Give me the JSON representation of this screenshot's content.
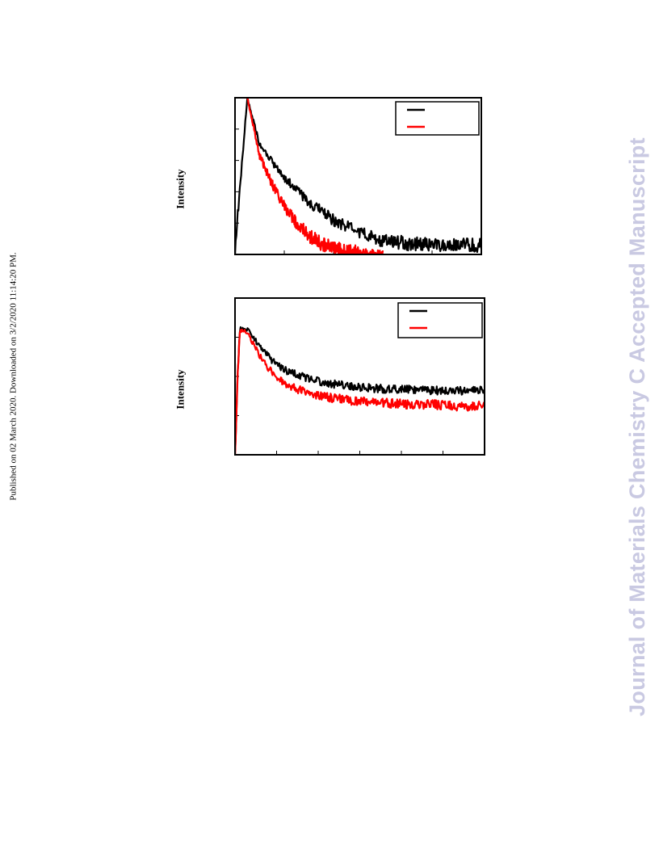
{
  "side_note": "Published on 02 March 2020. Downloaded on 3/2/2020 11:14:20 PM.",
  "watermark": "Journal of Materials Chemistry C Accepted Manuscript",
  "colors": {
    "series_1": "#000000",
    "series_2": "#ff0000",
    "watermark": "#c9c9e2"
  },
  "chart_data": [
    {
      "type": "line",
      "title": "",
      "xlabel": "",
      "ylabel": "Intensity",
      "x_ticks": 5,
      "y_ticks": 5,
      "xlim": [
        0,
        100
      ],
      "ylim": [
        0,
        100
      ],
      "grid": false,
      "legend_position": "top-right",
      "series": [
        {
          "color": "#000000",
          "x": [
            0,
            5,
            10,
            15,
            20,
            25,
            30,
            40,
            50,
            60,
            70,
            80,
            90,
            100
          ],
          "y": [
            4,
            100,
            70,
            59,
            49,
            41,
            33,
            22,
            14,
            9,
            7,
            6,
            6,
            6
          ]
        },
        {
          "color": "#ff0000",
          "x": [
            5,
            10,
            15,
            20,
            25,
            30,
            35,
            40,
            45,
            50,
            60
          ],
          "y": [
            100,
            63,
            45,
            31,
            20,
            12,
            7,
            4,
            2,
            1,
            0
          ]
        }
      ]
    },
    {
      "type": "line",
      "title": "",
      "xlabel": "",
      "ylabel": "Intensity",
      "x_ticks": 6,
      "y_ticks": 4,
      "xlim": [
        0,
        100
      ],
      "ylim": [
        0,
        100
      ],
      "grid": false,
      "legend_position": "top-right",
      "series": [
        {
          "color": "#000000",
          "x": [
            0,
            1,
            2,
            5,
            10,
            15,
            20,
            30,
            40,
            50,
            60,
            70,
            80,
            90,
            100
          ],
          "y": [
            0,
            50,
            80,
            80,
            69,
            60,
            54,
            48,
            45,
            43,
            42,
            42,
            41,
            41,
            41
          ]
        },
        {
          "color": "#ff0000",
          "x": [
            0,
            1,
            2,
            5,
            10,
            15,
            20,
            30,
            40,
            50,
            60,
            70,
            80,
            90,
            100
          ],
          "y": [
            0,
            50,
            80,
            78,
            63,
            52,
            45,
            39,
            36,
            34,
            33,
            32,
            32,
            31,
            31
          ]
        }
      ]
    }
  ]
}
